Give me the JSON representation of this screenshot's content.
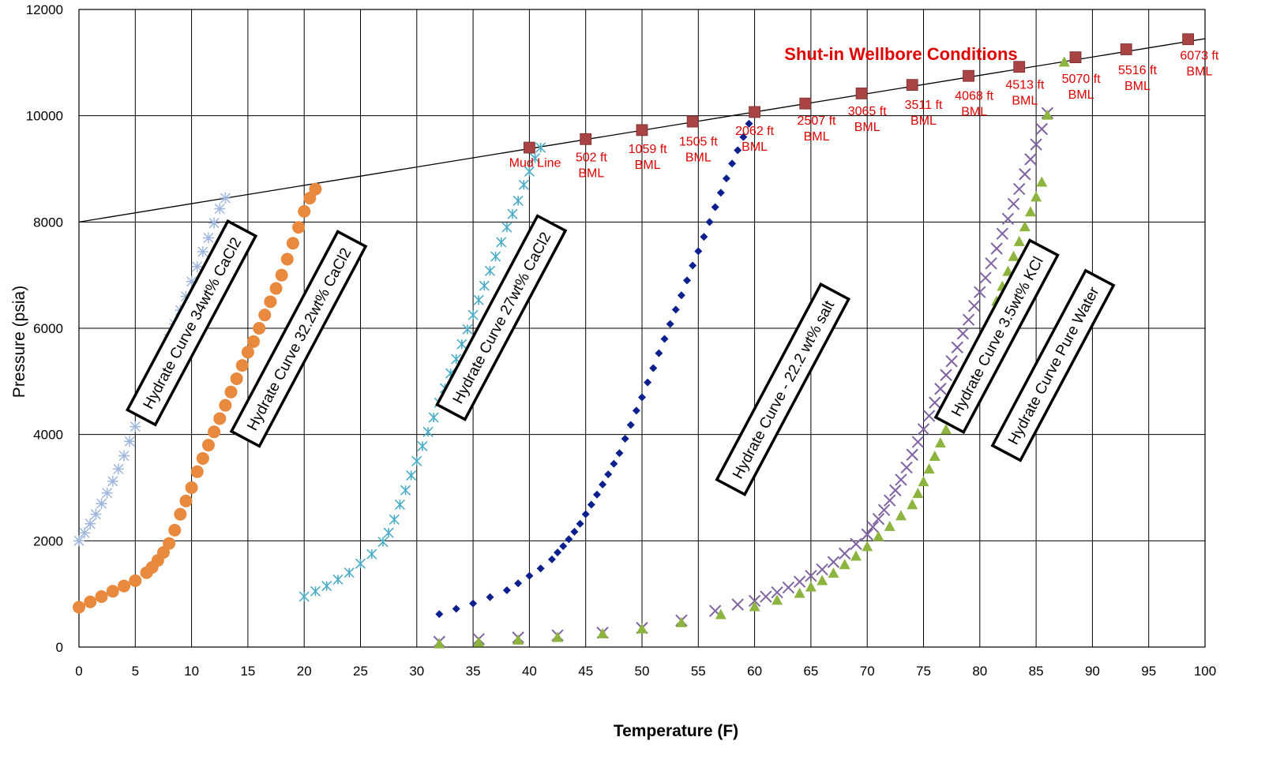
{
  "chart_data": {
    "type": "scatter",
    "title": "Shut-in Wellbore Conditions",
    "xlabel": "Temperature (F)",
    "ylabel": "Pressure (psia)",
    "xlim": [
      0,
      100
    ],
    "ylim": [
      0,
      12000
    ],
    "xticks": [
      "0",
      "5",
      "10",
      "15",
      "20",
      "25",
      "30",
      "35",
      "40",
      "45",
      "50",
      "55",
      "60",
      "65",
      "70",
      "75",
      "80",
      "85",
      "90",
      "95",
      "100"
    ],
    "yticks": [
      "0",
      "2000",
      "4000",
      "6000",
      "8000",
      "10000",
      "12000"
    ],
    "grid": true,
    "colors": {
      "cacl2_34": "#9fb7de",
      "cacl2_322": "#e8893e",
      "cacl2_27": "#4bacc6",
      "salt_222": "#0b1f8f",
      "kcl_35": "#8064a2",
      "pure_water": "#8db43e",
      "wellbore": "#a84444",
      "annotation": "#e00000"
    },
    "series": [
      {
        "name": "Hydrate Curve 34wt% CaCl2",
        "marker": "star",
        "x": [
          0,
          0.5,
          1,
          1.5,
          2,
          2.5,
          3,
          3.5,
          4,
          4.5,
          5,
          5.5,
          6,
          6.5,
          7,
          7.5,
          8,
          8.5,
          9,
          9.5,
          10,
          10.5,
          11,
          11.5,
          12,
          12.5,
          13
        ],
        "y": [
          2000,
          2150,
          2320,
          2500,
          2700,
          2900,
          3120,
          3350,
          3600,
          3870,
          4150,
          4420,
          4700,
          4980,
          5250,
          5520,
          5800,
          6080,
          6340,
          6600,
          6880,
          7160,
          7440,
          7700,
          7980,
          8250,
          8450
        ]
      },
      {
        "name": "Hydrate Curve 32.2wt% CaCl2",
        "marker": "circle",
        "x": [
          0,
          1,
          2,
          3,
          4,
          5,
          6,
          6.5,
          7,
          7.5,
          8,
          8.5,
          9,
          9.5,
          10,
          10.5,
          11,
          11.5,
          12,
          12.5,
          13,
          13.5,
          14,
          14.5,
          15,
          15.5,
          16,
          16.5,
          17,
          17.5,
          18,
          18.5,
          19,
          19.5,
          20,
          20.5,
          21
        ],
        "y": [
          750,
          850,
          950,
          1050,
          1150,
          1250,
          1400,
          1500,
          1630,
          1780,
          1950,
          2200,
          2500,
          2750,
          3000,
          3300,
          3550,
          3800,
          4050,
          4300,
          4550,
          4800,
          5050,
          5300,
          5550,
          5750,
          6000,
          6250,
          6500,
          6750,
          7000,
          7300,
          7600,
          7900,
          8200,
          8450,
          8620
        ]
      },
      {
        "name": "Hydrate Curve 27wt% CaCl2",
        "marker": "x-star",
        "x": [
          20,
          21,
          22,
          23,
          24,
          25,
          26,
          27,
          27.5,
          28,
          28.5,
          29,
          29.5,
          30,
          30.5,
          31,
          31.5,
          32,
          32.5,
          33,
          33.5,
          34,
          34.5,
          35,
          35.5,
          36,
          36.5,
          37,
          37.5,
          38,
          38.5,
          39,
          39.5,
          40,
          40.5,
          41
        ],
        "y": [
          950,
          1050,
          1150,
          1270,
          1400,
          1570,
          1750,
          1980,
          2150,
          2400,
          2680,
          2950,
          3230,
          3500,
          3780,
          4050,
          4320,
          4600,
          4870,
          5150,
          5420,
          5700,
          5980,
          6250,
          6530,
          6800,
          7080,
          7350,
          7620,
          7900,
          8150,
          8400,
          8700,
          8950,
          9200,
          9400
        ]
      },
      {
        "name": "Hydrate Curve - 22.2 wt% salt",
        "marker": "diamond",
        "x": [
          32,
          33.5,
          35,
          36.5,
          38,
          39,
          40,
          41,
          42,
          42.5,
          43,
          43.5,
          44,
          44.5,
          45,
          45.5,
          46,
          46.5,
          47,
          47.5,
          48,
          48.5,
          49,
          49.5,
          50,
          50.5,
          51,
          51.5,
          52,
          52.5,
          53,
          53.5,
          54,
          54.5,
          55,
          55.5,
          56,
          56.5,
          57,
          57.5,
          58,
          58.5,
          59,
          59.5,
          60
        ],
        "y": [
          620,
          720,
          820,
          940,
          1070,
          1200,
          1340,
          1480,
          1650,
          1780,
          1900,
          2030,
          2170,
          2320,
          2500,
          2680,
          2870,
          3060,
          3250,
          3450,
          3650,
          3920,
          4180,
          4450,
          4700,
          4980,
          5250,
          5530,
          5800,
          6080,
          6350,
          6620,
          6900,
          7180,
          7450,
          7720,
          8000,
          8280,
          8550,
          8820,
          9100,
          9350,
          9600,
          9850,
          10050
        ]
      },
      {
        "name": "Hydrate Curve 3.5wt% KCl",
        "marker": "x",
        "x": [
          32,
          35.5,
          39,
          42.5,
          46.5,
          50,
          53.5,
          56.5,
          58.5,
          60,
          61,
          62,
          63,
          64,
          65,
          66,
          67,
          68,
          69,
          70,
          70.5,
          71,
          71.5,
          72,
          72.5,
          73,
          73.5,
          74,
          74.5,
          75,
          75.5,
          76,
          76.5,
          77,
          77.5,
          78,
          78.5,
          79,
          79.5,
          80,
          80.5,
          81,
          81.5,
          82,
          82.5,
          83,
          83.5,
          84,
          84.5,
          85,
          85.5,
          86
        ],
        "y": [
          100,
          150,
          180,
          220,
          270,
          360,
          500,
          680,
          800,
          870,
          950,
          1030,
          1120,
          1230,
          1340,
          1460,
          1600,
          1760,
          1940,
          2120,
          2260,
          2410,
          2580,
          2760,
          2950,
          3150,
          3380,
          3620,
          3860,
          4100,
          4350,
          4600,
          4860,
          5120,
          5380,
          5640,
          5900,
          6160,
          6420,
          6680,
          6950,
          7220,
          7500,
          7780,
          8060,
          8340,
          8620,
          8900,
          9180,
          9460,
          9750,
          10050
        ]
      },
      {
        "name": "Hydrate Curve Pure Water",
        "marker": "triangle",
        "x": [
          32,
          35.5,
          39,
          42.5,
          46.5,
          50,
          53.5,
          57,
          60,
          62,
          64,
          65,
          66,
          67,
          68,
          69,
          70,
          71,
          72,
          73,
          74,
          74.5,
          75,
          75.5,
          76,
          76.5,
          77,
          77.5,
          78,
          78.5,
          79,
          79.5,
          80,
          80.5,
          81,
          81.5,
          82,
          82.5,
          83,
          83.5,
          84,
          84.5,
          85,
          85.5,
          86,
          87.5
        ],
        "y": [
          50,
          80,
          120,
          170,
          240,
          330,
          450,
          600,
          750,
          870,
          1000,
          1120,
          1240,
          1380,
          1540,
          1700,
          1880,
          2070,
          2260,
          2460,
          2670,
          2880,
          3100,
          3340,
          3580,
          3830,
          4080,
          4340,
          4600,
          4860,
          5120,
          5390,
          5660,
          5940,
          6220,
          6500,
          6780,
          7060,
          7340,
          7620,
          7900,
          8180,
          8460,
          8740,
          10000,
          11000
        ]
      },
      {
        "name": "Shut-in Wellbore Conditions",
        "marker": "square",
        "x": [
          40,
          45,
          50,
          54.5,
          60,
          64.5,
          69.5,
          74,
          79,
          83.5,
          88.5,
          93,
          98.5
        ],
        "y": [
          9400,
          9560,
          9730,
          9890,
          10070,
          10230,
          10420,
          10580,
          10750,
          10920,
          11100,
          11250,
          11440
        ]
      }
    ],
    "trendline": {
      "x": [
        0,
        100
      ],
      "y": [
        8000,
        11450
      ]
    },
    "series_labels": [
      {
        "text": "Hydrate Curve 34wt% CaCl2",
        "x": 10,
        "y": 6100,
        "angle": -62
      },
      {
        "text": "Hydrate Curve 32.2wt% CaCl2",
        "x": 19.5,
        "y": 5800,
        "angle": -62
      },
      {
        "text": "Hydrate Curve 27wt% CaCl2",
        "x": 37.5,
        "y": 6200,
        "angle": -62
      },
      {
        "text": "Hydrate Curve - 22.2 wt% salt",
        "x": 62.5,
        "y": 4850,
        "angle": -62
      },
      {
        "text": "Hydrate Curve 3.5wt% KCl",
        "x": 81.5,
        "y": 5850,
        "angle": -62
      },
      {
        "text": "Hydrate Curve Pure Water",
        "x": 86.5,
        "y": 5300,
        "angle": -62
      }
    ],
    "annotations": [
      {
        "lines": [
          "Mud Line"
        ],
        "x": 40.5,
        "y": 9040
      },
      {
        "lines": [
          "502 ft",
          "BML"
        ],
        "x": 45.5,
        "y": 9140
      },
      {
        "lines": [
          "1059 ft",
          "BML"
        ],
        "x": 50.5,
        "y": 9300
      },
      {
        "lines": [
          "1505 ft",
          "BML"
        ],
        "x": 55,
        "y": 9440
      },
      {
        "lines": [
          "2062 ft",
          "BML"
        ],
        "x": 60,
        "y": 9640
      },
      {
        "lines": [
          "2507 ft",
          "BML"
        ],
        "x": 65.5,
        "y": 9830
      },
      {
        "lines": [
          "3065 ft",
          "BML"
        ],
        "x": 70,
        "y": 10010
      },
      {
        "lines": [
          "3511 ft",
          "BML"
        ],
        "x": 75,
        "y": 10130
      },
      {
        "lines": [
          "4068 ft",
          "BML"
        ],
        "x": 79.5,
        "y": 10300
      },
      {
        "lines": [
          "4513 ft",
          "BML"
        ],
        "x": 84,
        "y": 10510
      },
      {
        "lines": [
          "5070 ft",
          "BML"
        ],
        "x": 89,
        "y": 10620
      },
      {
        "lines": [
          "5516 ft",
          "BML"
        ],
        "x": 94,
        "y": 10780
      },
      {
        "lines": [
          "6073 ft",
          "BML"
        ],
        "x": 99.5,
        "y": 11060
      }
    ],
    "title_pos": {
      "x": 73,
      "y": 11050
    }
  }
}
